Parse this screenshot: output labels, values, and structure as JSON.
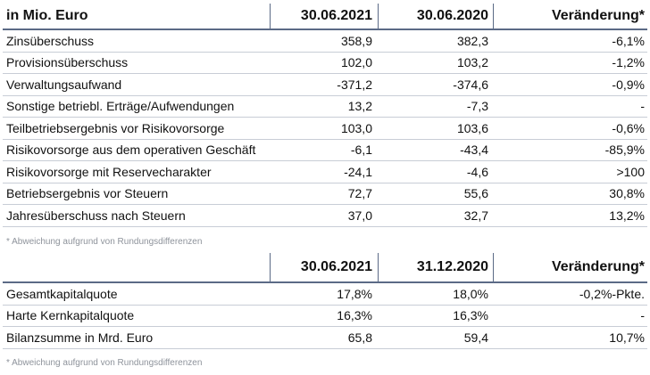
{
  "table1": {
    "header": [
      "in Mio. Euro",
      "30.06.2021",
      "30.06.2020",
      "Veränderung*"
    ],
    "rows": [
      [
        "Zinsüberschuss",
        "358,9",
        "382,3",
        "-6,1%"
      ],
      [
        "Provisionsüberschuss",
        "102,0",
        "103,2",
        "-1,2%"
      ],
      [
        "Verwaltungsaufwand",
        "-371,2",
        "-374,6",
        "-0,9%"
      ],
      [
        "Sonstige betriebl. Erträge/Aufwendungen",
        "13,2",
        "-7,3",
        "-"
      ],
      [
        "Teilbetriebsergebnis vor Risikovorsorge",
        "103,0",
        "103,6",
        "-0,6%"
      ],
      [
        "Risikovorsorge aus dem operativen Geschäft",
        "-6,1",
        "-43,4",
        "-85,9%"
      ],
      [
        "Risikovorsorge mit Reservecharakter",
        "-24,1",
        "-4,6",
        ">100"
      ],
      [
        "Betriebsergebnis vor Steuern",
        "72,7",
        "55,6",
        "30,8%"
      ],
      [
        "Jahresüberschuss nach Steuern",
        "37,0",
        "32,7",
        "13,2%"
      ]
    ],
    "footnote": "* Abweichung aufgrund von Rundungsdifferenzen"
  },
  "table2": {
    "header": [
      "",
      "30.06.2021",
      "31.12.2020",
      "Veränderung*"
    ],
    "rows": [
      [
        "Gesamtkapitalquote",
        "17,8%",
        "18,0%",
        "-0,2%-Pkte."
      ],
      [
        "Harte Kernkapitalquote",
        "16,3%",
        "16,3%",
        "-"
      ],
      [
        "Bilanzsumme in Mrd. Euro",
        "65,8",
        "59,4",
        "10,7%"
      ]
    ],
    "footnote": "* Abweichung aufgrund von Rundungsdifferenzen"
  }
}
